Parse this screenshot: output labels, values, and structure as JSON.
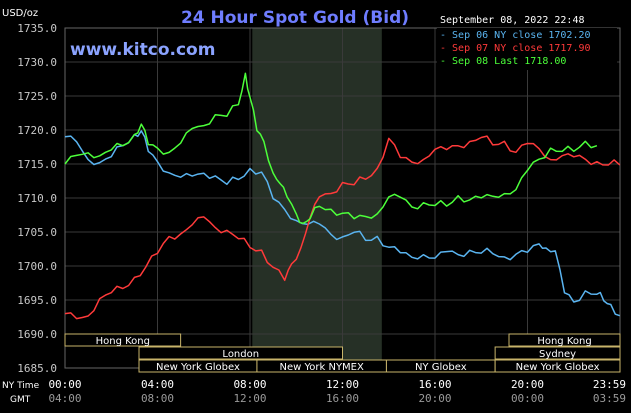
{
  "header": {
    "unit": "USD/oz",
    "title": "24 Hour Spot Gold (Bid)",
    "site": "www.kitco.com",
    "timestamp": "September 08, 2022 22:48"
  },
  "footer": {
    "ny_label": "NY Time",
    "gmt_label": "GMT"
  },
  "sessions": [
    {
      "label": "Hong Kong",
      "row": 0
    },
    {
      "label": "London",
      "row": 1
    },
    {
      "label": "New York Globex",
      "row": 2
    },
    {
      "label": "New York NYMEX",
      "row": 2
    },
    {
      "label": "NY Globex",
      "row": 2
    },
    {
      "label": "Hong Kong",
      "row": 0
    },
    {
      "label": "Sydney",
      "row": 1
    },
    {
      "label": "New York Globex",
      "row": 2
    }
  ],
  "colors": {
    "background": "#000000",
    "grid": "#3a3a3a",
    "plot_shade": "#263026",
    "series_blue": "#5ab4f0",
    "series_red": "#ff3a3a",
    "series_green": "#4cff3a",
    "title": "#6f7dff",
    "text": "#ffffff",
    "tick": "#c8c8c8",
    "session_bar": "#000000",
    "session_border": "#c8b46a"
  },
  "chart_data": {
    "type": "line",
    "title": "24 Hour Spot Gold (Bid)",
    "ylabel": "USD/oz",
    "ylim": [
      1685,
      1735
    ],
    "yticks": [
      "1685.0",
      "1690.0",
      "1695.0",
      "1700.0",
      "1705.0",
      "1710.0",
      "1715.0",
      "1720.0",
      "1725.0",
      "1730.0",
      "1735.0"
    ],
    "xlim": [
      0,
      24
    ],
    "xticks_ny": [
      "00:00",
      "04:00",
      "08:00",
      "12:00",
      "16:00",
      "20:00",
      "23:59"
    ],
    "xticks_gmt": [
      "04:00",
      "08:00",
      "12:00",
      "16:00",
      "20:00",
      "00:00",
      "03:59"
    ],
    "grid": true,
    "legend_position": "top-right",
    "shaded_interval": [
      8.1,
      13.7
    ],
    "series": [
      {
        "name": "Sep 06 NY close 1702.20",
        "color": "blue",
        "x": [
          0,
          0.5,
          1,
          1.5,
          2,
          2.5,
          3,
          3.3,
          3.6,
          4,
          4.5,
          5,
          5.5,
          6,
          6.5,
          7,
          7.5,
          8,
          8.5,
          9,
          9.5,
          10,
          10.5,
          11,
          11.5,
          12,
          12.5,
          13,
          13.5,
          14,
          14.5,
          15,
          15.5,
          16,
          16.5,
          17,
          17.5,
          18,
          18.5,
          19,
          19.5,
          20,
          20.5,
          20.8,
          21.2,
          21.6,
          22,
          22.5,
          23,
          23.3,
          23.6,
          23.99
        ],
        "y": [
          1719,
          1718,
          1716,
          1715,
          1716,
          1718,
          1719,
          1720,
          1717,
          1715,
          1714,
          1713,
          1713,
          1714,
          1713,
          1712,
          1713,
          1714,
          1714,
          1710,
          1708,
          1707,
          1706,
          1706,
          1705,
          1704,
          1705,
          1704,
          1704,
          1703,
          1702,
          1701,
          1702,
          1701,
          1702,
          1702,
          1702,
          1702,
          1702,
          1701,
          1702,
          1702,
          1703,
          1703,
          1702,
          1696,
          1695,
          1696,
          1696,
          1695,
          1694,
          1693
        ]
      },
      {
        "name": "Sep 07 NY close 1717.90",
        "color": "red",
        "x": [
          0,
          0.5,
          1,
          1.5,
          2,
          2.5,
          3,
          3.5,
          4,
          4.5,
          5,
          5.5,
          6,
          6.5,
          7,
          7.5,
          8,
          8.5,
          9,
          9.5,
          9.8,
          10.2,
          10.6,
          11,
          11.5,
          12,
          12.5,
          13,
          13.5,
          14,
          14.5,
          15,
          15.5,
          16,
          16.5,
          17,
          17.5,
          18,
          18.5,
          19,
          19.5,
          20,
          20.5,
          21,
          21.5,
          22,
          22.5,
          23,
          23.5,
          23.99
        ],
        "y": [
          1693,
          1692,
          1693,
          1695,
          1696,
          1697,
          1698,
          1700,
          1702,
          1704,
          1705,
          1706,
          1707,
          1706,
          1705,
          1704,
          1703,
          1702,
          1700,
          1698,
          1700,
          1703,
          1707,
          1710,
          1711,
          1712,
          1712,
          1713,
          1714,
          1719,
          1716,
          1715,
          1716,
          1717,
          1717,
          1718,
          1718,
          1719,
          1718,
          1718,
          1717,
          1718,
          1717,
          1716,
          1716,
          1716,
          1716,
          1715,
          1715,
          1715
        ]
      },
      {
        "name": "Sep 08 Last 1718.00",
        "color": "green",
        "x": [
          0,
          0.5,
          1,
          1.5,
          2,
          2.5,
          3,
          3.3,
          3.6,
          4,
          4.5,
          5,
          5.5,
          6,
          6.5,
          7,
          7.5,
          7.8,
          8,
          8.3,
          8.6,
          9,
          9.3,
          9.6,
          10,
          10.3,
          10.6,
          11,
          11.5,
          12,
          12.5,
          13,
          13.5,
          14,
          14.5,
          15,
          15.5,
          16,
          16.5,
          17,
          17.5,
          18,
          18.5,
          19,
          19.5,
          20,
          20.5,
          21,
          21.5,
          22,
          22.5,
          23
        ],
        "y": [
          1715,
          1716,
          1717,
          1716,
          1717,
          1718,
          1719,
          1721,
          1718,
          1717,
          1717,
          1718,
          1720,
          1721,
          1722,
          1722,
          1724,
          1728,
          1725,
          1720,
          1718,
          1714,
          1712,
          1710,
          1708,
          1706,
          1707,
          1709,
          1708,
          1708,
          1707,
          1707,
          1708,
          1710,
          1710,
          1709,
          1709,
          1709,
          1709,
          1710,
          1710,
          1710,
          1710,
          1711,
          1711,
          1714,
          1716,
          1717,
          1717,
          1717,
          1718,
          1718
        ]
      }
    ]
  }
}
